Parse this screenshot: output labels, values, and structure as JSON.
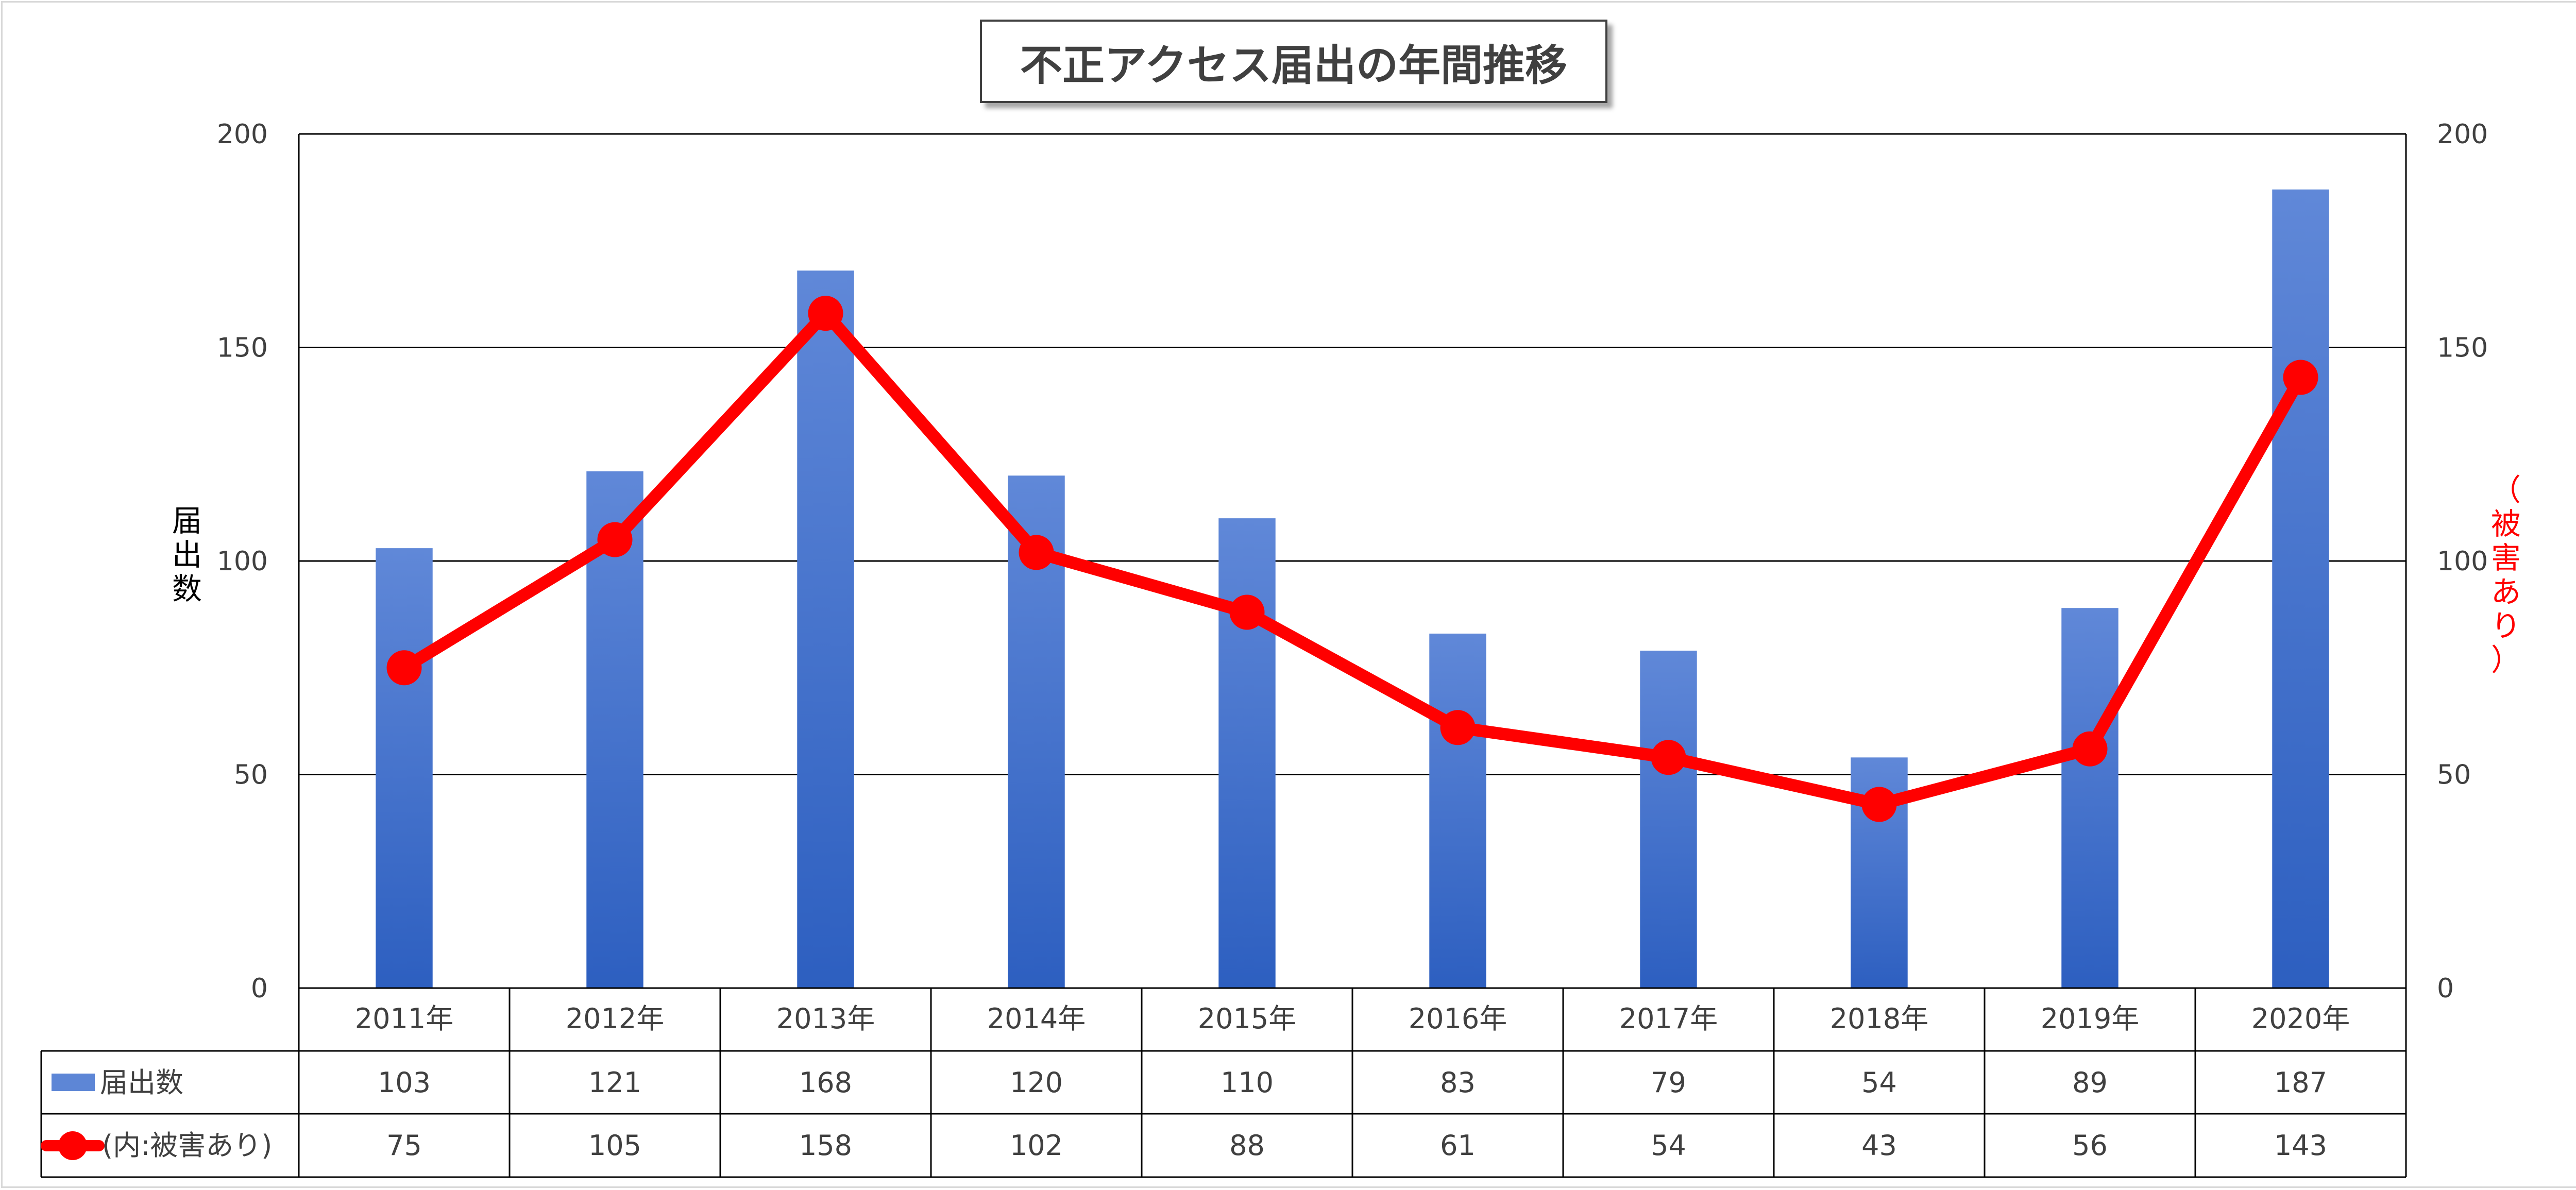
{
  "colors": {
    "bar": "#3366cc",
    "bar_light": "#5d86d6",
    "line": "#ff0000",
    "grid": "#000000",
    "text": "#404040"
  },
  "chart_data": {
    "type": "bar",
    "title": "不正アクセス届出の年間推移",
    "categories": [
      "2011年",
      "2012年",
      "2013年",
      "2014年",
      "2015年",
      "2016年",
      "2017年",
      "2018年",
      "2019年",
      "2020年"
    ],
    "series": [
      {
        "name": "届出数",
        "type": "bar",
        "axis": "left",
        "values": [
          103,
          121,
          168,
          120,
          110,
          83,
          79,
          54,
          89,
          187
        ]
      },
      {
        "name": "(内:被害あり)",
        "type": "line",
        "axis": "right",
        "values": [
          75,
          105,
          158,
          102,
          88,
          61,
          54,
          43,
          56,
          143
        ]
      }
    ],
    "ylabel": "届出数",
    "ylabel_right": "（被害あり）",
    "ylim": [
      0,
      200
    ],
    "ylim_right": [
      0,
      200
    ],
    "yticks": [
      0,
      50,
      100,
      150,
      200
    ],
    "grid": true,
    "legend": "data-table"
  }
}
